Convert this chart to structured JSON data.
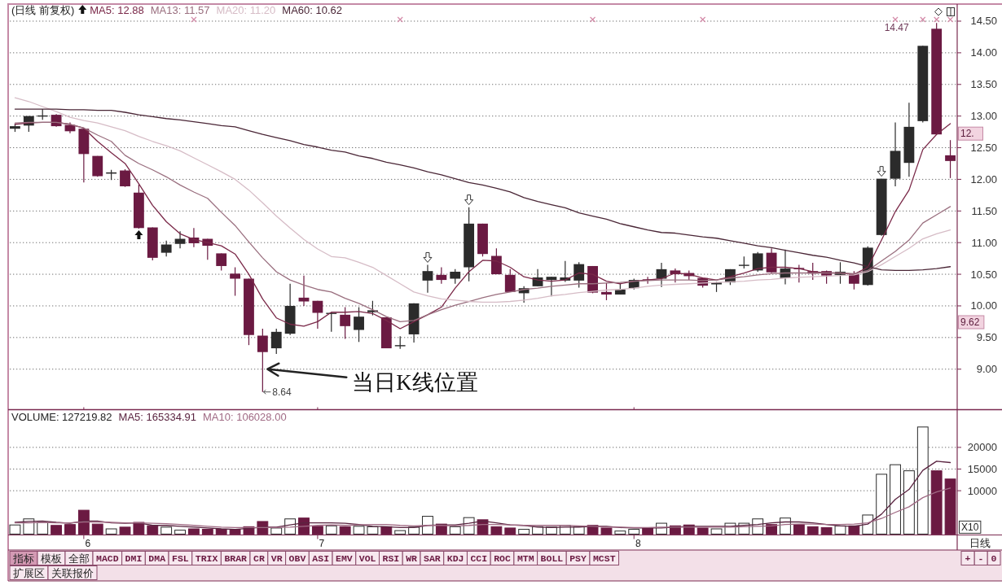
{
  "chart_data": [
    {
      "type": "candlestick",
      "title": "(日线 前复权)",
      "categories": [
        null,
        null,
        null,
        null,
        null,
        "6",
        null,
        null,
        null,
        null,
        null,
        null,
        null,
        null,
        null,
        null,
        null,
        null,
        null,
        null,
        null,
        null,
        "7",
        null,
        null,
        null,
        null,
        null,
        null,
        null,
        null,
        null,
        null,
        null,
        null,
        null,
        null,
        null,
        null,
        null,
        null,
        null,
        null,
        null,
        null,
        "8",
        null,
        null,
        null,
        null,
        null,
        null,
        null,
        null,
        null,
        null,
        null,
        null,
        null,
        null,
        null,
        null,
        null,
        null,
        null,
        null,
        null,
        null,
        null
      ],
      "ohlc": [
        [
          12.8,
          12.88,
          12.75,
          12.84
        ],
        [
          12.85,
          13.0,
          12.75,
          13.0
        ],
        [
          13.0,
          13.11,
          12.94,
          13.01
        ],
        [
          13.02,
          13.03,
          12.83,
          12.84
        ],
        [
          12.86,
          12.9,
          12.73,
          12.76
        ],
        [
          12.8,
          12.81,
          11.95,
          12.4
        ],
        [
          12.37,
          12.37,
          12.04,
          12.05
        ],
        [
          12.09,
          12.15,
          11.99,
          12.11
        ],
        [
          12.14,
          12.16,
          11.88,
          11.89
        ],
        [
          11.79,
          11.92,
          11.22,
          11.23
        ],
        [
          11.24,
          11.24,
          10.72,
          10.76
        ],
        [
          10.84,
          11.03,
          10.78,
          10.97
        ],
        [
          10.98,
          11.18,
          10.91,
          11.06
        ],
        [
          11.08,
          11.23,
          10.93,
          10.99
        ],
        [
          11.06,
          11.06,
          10.73,
          10.95
        ],
        [
          10.83,
          10.83,
          10.56,
          10.63
        ],
        [
          10.51,
          10.61,
          10.16,
          10.43
        ],
        [
          10.43,
          10.43,
          9.38,
          9.54
        ],
        [
          9.53,
          9.64,
          8.64,
          9.27
        ],
        [
          9.33,
          9.64,
          9.24,
          9.59
        ],
        [
          9.56,
          10.35,
          9.54,
          10.0
        ],
        [
          10.13,
          10.48,
          10.0,
          10.07
        ],
        [
          10.08,
          10.08,
          9.64,
          9.89
        ],
        [
          9.88,
          9.9,
          9.59,
          9.89
        ],
        [
          9.86,
          9.98,
          9.48,
          9.68
        ],
        [
          9.62,
          9.98,
          9.43,
          9.83
        ],
        [
          9.9,
          10.08,
          9.85,
          9.93
        ],
        [
          9.82,
          9.82,
          9.33,
          9.33
        ],
        [
          9.37,
          9.52,
          9.32,
          9.38
        ],
        [
          9.55,
          10.04,
          9.42,
          10.04
        ],
        [
          10.4,
          10.65,
          10.21,
          10.55
        ],
        [
          10.49,
          10.61,
          10.35,
          10.41
        ],
        [
          10.43,
          10.58,
          10.35,
          10.54
        ],
        [
          10.61,
          11.56,
          10.39,
          11.3
        ],
        [
          11.3,
          11.3,
          10.78,
          10.82
        ],
        [
          10.79,
          10.91,
          10.5,
          10.5
        ],
        [
          10.49,
          10.58,
          10.22,
          10.22
        ],
        [
          10.2,
          10.31,
          10.05,
          10.28
        ],
        [
          10.31,
          10.58,
          10.31,
          10.45
        ],
        [
          10.41,
          10.46,
          10.15,
          10.46
        ],
        [
          10.4,
          10.71,
          10.38,
          10.45
        ],
        [
          10.4,
          10.69,
          10.29,
          10.66
        ],
        [
          10.63,
          10.63,
          10.2,
          10.21
        ],
        [
          10.22,
          10.36,
          10.09,
          10.18
        ],
        [
          10.18,
          10.35,
          10.18,
          10.26
        ],
        [
          10.28,
          10.43,
          10.26,
          10.41
        ],
        [
          10.42,
          10.46,
          10.35,
          10.41
        ],
        [
          10.43,
          10.68,
          10.3,
          10.58
        ],
        [
          10.56,
          10.59,
          10.37,
          10.5
        ],
        [
          10.52,
          10.56,
          10.41,
          10.47
        ],
        [
          10.44,
          10.44,
          10.29,
          10.32
        ],
        [
          10.34,
          10.38,
          10.22,
          10.37
        ],
        [
          10.37,
          10.58,
          10.33,
          10.58
        ],
        [
          10.64,
          10.78,
          10.59,
          10.65
        ],
        [
          10.56,
          10.85,
          10.54,
          10.83
        ],
        [
          10.84,
          10.91,
          10.52,
          10.53
        ],
        [
          10.44,
          10.89,
          10.34,
          10.59
        ],
        [
          10.6,
          10.65,
          10.37,
          10.58
        ],
        [
          10.55,
          10.68,
          10.41,
          10.51
        ],
        [
          10.55,
          10.56,
          10.35,
          10.48
        ],
        [
          10.49,
          10.69,
          10.35,
          10.54
        ],
        [
          10.51,
          10.55,
          10.26,
          10.35
        ],
        [
          10.33,
          10.94,
          10.32,
          10.92
        ],
        [
          11.12,
          12.01,
          11.11,
          12.01
        ],
        [
          12.01,
          12.9,
          11.89,
          12.45
        ],
        [
          12.26,
          13.21,
          12.04,
          12.83
        ],
        [
          12.92,
          14.11,
          12.9,
          14.11
        ],
        [
          14.38,
          14.47,
          12.71,
          12.71
        ],
        [
          12.38,
          12.62,
          12.02,
          12.29
        ]
      ],
      "colors": [
        "#2b2b2b",
        "#2b2b2b",
        "#2b2b2b",
        "#6b1a42",
        "#6b1a42",
        "#6b1a42",
        "#6b1a42",
        "#2b2b2b",
        "#6b1a42",
        "#6b1a42",
        "#6b1a42",
        "#2b2b2b",
        "#2b2b2b",
        "#6b1a42",
        "#6b1a42",
        "#6b1a42",
        "#6b1a42",
        "#6b1a42",
        "#6b1a42",
        "#2b2b2b",
        "#2b2b2b",
        "#6b1a42",
        "#6b1a42",
        "#2b2b2b",
        "#6b1a42",
        "#2b2b2b",
        "#2b2b2b",
        "#6b1a42",
        "#2b2b2b",
        "#2b2b2b",
        "#2b2b2b",
        "#6b1a42",
        "#2b2b2b",
        "#2b2b2b",
        "#6b1a42",
        "#6b1a42",
        "#6b1a42",
        "#2b2b2b",
        "#2b2b2b",
        "#2b2b2b",
        "#2b2b2b",
        "#2b2b2b",
        "#6b1a42",
        "#6b1a42",
        "#2b2b2b",
        "#2b2b2b",
        "#6b1a42",
        "#2b2b2b",
        "#6b1a42",
        "#6b1a42",
        "#6b1a42",
        "#2b2b2b",
        "#2b2b2b",
        "#2b2b2b",
        "#2b2b2b",
        "#6b1a42",
        "#2b2b2b",
        "#6b1a42",
        "#6b1a42",
        "#6b1a42",
        "#2b2b2b",
        "#6b1a42",
        "#2b2b2b",
        "#2b2b2b",
        "#2b2b2b",
        "#2b2b2b",
        "#2b2b2b",
        "#6b1a42",
        "#6b1a42"
      ],
      "series": [
        {
          "name": "MA5: 12.88",
          "type": "line",
          "color": "#7a2848",
          "values": [
            12.87,
            12.89,
            12.9,
            12.9,
            12.87,
            12.81,
            12.6,
            12.42,
            12.25,
            11.93,
            11.59,
            11.33,
            11.14,
            11.05,
            11.0,
            10.95,
            10.82,
            10.5,
            10.11,
            9.81,
            9.71,
            9.68,
            9.75,
            9.9,
            9.9,
            9.91,
            9.88,
            9.77,
            9.64,
            9.75,
            9.86,
            9.98,
            10.28,
            10.54,
            10.72,
            10.71,
            10.61,
            10.46,
            10.41,
            10.39,
            10.41,
            10.52,
            10.5,
            10.39,
            10.35,
            10.39,
            10.41,
            10.43,
            10.52,
            10.5,
            10.44,
            10.41,
            10.46,
            10.52,
            10.59,
            10.61,
            10.61,
            10.59,
            10.54,
            10.52,
            10.52,
            10.5,
            10.61,
            11.04,
            11.49,
            11.83,
            12.47,
            12.71,
            12.88
          ]
        },
        {
          "name": "MA13: 11.57",
          "type": "line",
          "color": "#9a6f7f",
          "values": [
            12.89,
            12.9,
            12.9,
            12.9,
            12.87,
            12.81,
            12.7,
            12.6,
            12.38,
            12.25,
            12.15,
            12.04,
            11.91,
            11.8,
            11.7,
            11.48,
            11.27,
            11.01,
            10.76,
            10.54,
            10.41,
            10.33,
            10.26,
            10.22,
            10.12,
            10.04,
            9.94,
            9.83,
            9.75,
            9.77,
            9.86,
            9.94,
            10.01,
            10.07,
            10.13,
            10.18,
            10.22,
            10.26,
            10.28,
            10.31,
            10.33,
            10.35,
            10.35,
            10.36,
            10.37,
            10.39,
            10.4,
            10.41,
            10.41,
            10.41,
            10.4,
            10.41,
            10.44,
            10.46,
            10.49,
            10.51,
            10.52,
            10.52,
            10.52,
            10.52,
            10.52,
            10.51,
            10.56,
            10.71,
            10.86,
            11.04,
            11.31,
            11.44,
            11.57
          ]
        },
        {
          "name": "MA20: 11.20",
          "type": "line",
          "color": "#d6bcc6",
          "values": [
            13.29,
            13.23,
            13.15,
            13.07,
            12.98,
            12.93,
            12.89,
            12.83,
            12.77,
            12.68,
            12.6,
            12.53,
            12.45,
            12.34,
            12.23,
            12.12,
            12.0,
            11.83,
            11.63,
            11.42,
            11.23,
            11.05,
            10.9,
            10.78,
            10.76,
            10.69,
            10.61,
            10.48,
            10.35,
            10.22,
            10.16,
            10.11,
            10.09,
            10.07,
            10.06,
            10.06,
            10.07,
            10.09,
            10.12,
            10.16,
            10.18,
            10.21,
            10.23,
            10.25,
            10.26,
            10.28,
            10.31,
            10.33,
            10.34,
            10.35,
            10.36,
            10.37,
            10.38,
            10.39,
            10.41,
            10.42,
            10.44,
            10.45,
            10.46,
            10.47,
            10.48,
            10.49,
            10.54,
            10.65,
            10.78,
            10.91,
            11.06,
            11.14,
            11.2
          ]
        },
        {
          "name": "MA60: 10.62",
          "type": "line",
          "color": "#4a2636",
          "values": [
            13.11,
            13.11,
            13.11,
            13.11,
            13.1,
            13.1,
            13.09,
            13.09,
            13.06,
            13.02,
            12.99,
            12.96,
            12.94,
            12.91,
            12.88,
            12.85,
            12.83,
            12.77,
            12.71,
            12.66,
            12.61,
            12.55,
            12.51,
            12.46,
            12.43,
            12.37,
            12.33,
            12.27,
            12.23,
            12.18,
            12.12,
            12.07,
            12.01,
            11.95,
            11.91,
            11.86,
            11.8,
            11.71,
            11.65,
            11.6,
            11.55,
            11.47,
            11.42,
            11.37,
            11.3,
            11.25,
            11.2,
            11.16,
            11.15,
            11.12,
            11.09,
            11.07,
            11.03,
            10.99,
            10.95,
            10.92,
            10.88,
            10.84,
            10.8,
            10.77,
            10.72,
            10.68,
            10.62,
            10.57,
            10.56,
            10.56,
            10.57,
            10.59,
            10.62
          ]
        }
      ],
      "ylim": [
        8.36,
        14.77
      ],
      "yticks": [
        {
          "value": 9,
          "label": "9.00"
        },
        {
          "value": 9.5,
          "label": "9.50"
        },
        {
          "value": 10,
          "label": "10.00"
        },
        {
          "value": 10.5,
          "label": "10.50"
        },
        {
          "value": 11,
          "label": "11.00"
        },
        {
          "value": 11.5,
          "label": "11.50"
        },
        {
          "value": 12,
          "label": "12.00"
        },
        {
          "value": 12.5,
          "label": "12.50"
        },
        {
          "value": 13,
          "label": "13.00"
        },
        {
          "value": 13.5,
          "label": "13.50"
        },
        {
          "value": 14,
          "label": "14.00"
        },
        {
          "value": 14.5,
          "label": "14.50"
        }
      ],
      "grid": "y",
      "legend": "top left",
      "tick_labels": "y",
      "annotations": [
        "当日K线位置",
        "8.64",
        "14.47",
        "9.62",
        "12."
      ]
    },
    {
      "type": "bar",
      "categories": [
        null,
        null,
        null,
        null,
        null,
        "6",
        null,
        null,
        null,
        null,
        null,
        null,
        null,
        null,
        null,
        null,
        null,
        null,
        null,
        null,
        null,
        null,
        "7",
        null,
        null,
        null,
        null,
        null,
        null,
        null,
        null,
        null,
        null,
        null,
        null,
        null,
        null,
        null,
        null,
        null,
        null,
        null,
        null,
        null,
        null,
        "8",
        null,
        null,
        null,
        null,
        null,
        null,
        null,
        null,
        null,
        null,
        null,
        null,
        null,
        null,
        null,
        null,
        null,
        null,
        null,
        null,
        null,
        null,
        null
      ],
      "series": [
        {
          "name": "VOLUME: 127219.82",
          "type": "bar",
          "colors": [
            "#2b2b2b",
            "#2b2b2b",
            "#2b2b2b",
            "#6b1a42",
            "#6b1a42",
            "#6b1a42",
            "#6b1a42",
            "#2b2b2b",
            "#6b1a42",
            "#6b1a42",
            "#6b1a42",
            "#2b2b2b",
            "#2b2b2b",
            "#6b1a42",
            "#6b1a42",
            "#6b1a42",
            "#6b1a42",
            "#6b1a42",
            "#6b1a42",
            "#2b2b2b",
            "#2b2b2b",
            "#6b1a42",
            "#6b1a42",
            "#2b2b2b",
            "#6b1a42",
            "#2b2b2b",
            "#2b2b2b",
            "#6b1a42",
            "#2b2b2b",
            "#2b2b2b",
            "#2b2b2b",
            "#6b1a42",
            "#2b2b2b",
            "#2b2b2b",
            "#6b1a42",
            "#6b1a42",
            "#6b1a42",
            "#2b2b2b",
            "#2b2b2b",
            "#2b2b2b",
            "#2b2b2b",
            "#2b2b2b",
            "#6b1a42",
            "#6b1a42",
            "#2b2b2b",
            "#2b2b2b",
            "#6b1a42",
            "#2b2b2b",
            "#6b1a42",
            "#6b1a42",
            "#6b1a42",
            "#2b2b2b",
            "#2b2b2b",
            "#2b2b2b",
            "#2b2b2b",
            "#6b1a42",
            "#2b2b2b",
            "#6b1a42",
            "#6b1a42",
            "#6b1a42",
            "#2b2b2b",
            "#6b1a42",
            "#2b2b2b",
            "#2b2b2b",
            "#2b2b2b",
            "#2b2b2b",
            "#2b2b2b",
            "#6b1a42",
            "#6b1a42"
          ],
          "values": [
            2100,
            3500,
            2700,
            2000,
            2200,
            5500,
            2300,
            1200,
            1600,
            2700,
            1900,
            1600,
            900,
            1200,
            1100,
            1100,
            1100,
            1700,
            2900,
            1400,
            3500,
            3700,
            1800,
            1900,
            1700,
            1800,
            1700,
            1700,
            800,
            1600,
            4100,
            2300,
            1700,
            3800,
            3300,
            1700,
            1400,
            1100,
            1700,
            1600,
            2000,
            1700,
            2000,
            1400,
            700,
            1100,
            1400,
            2500,
            1900,
            2100,
            1400,
            1200,
            2500,
            2500,
            3500,
            2200,
            3700,
            2200,
            1700,
            1500,
            1900,
            1900,
            4400,
            13800,
            16000,
            14600,
            24700,
            14600,
            12700
          ]
        },
        {
          "name": "MA5: 165334.91",
          "type": "line",
          "color": "#5a2440",
          "values": [
            2700,
            2900,
            3000,
            2700,
            2500,
            3000,
            3000,
            2600,
            2500,
            2600,
            2000,
            2000,
            1800,
            1600,
            1400,
            1200,
            1100,
            1300,
            1600,
            1600,
            2100,
            2600,
            2600,
            2600,
            2500,
            2200,
            1800,
            1700,
            1500,
            1500,
            2000,
            2100,
            2100,
            2500,
            3000,
            2600,
            2100,
            2000,
            1600,
            1500,
            1600,
            1600,
            1800,
            1800,
            1500,
            1400,
            1400,
            1400,
            1600,
            1800,
            1800,
            1800,
            1800,
            2000,
            2200,
            2600,
            2800,
            2800,
            2600,
            2200,
            1900,
            1800,
            2300,
            4600,
            8000,
            10300,
            14700,
            16800,
            16500
          ]
        },
        {
          "name": "MA10: 106028.00",
          "type": "line",
          "color": "#a06a84",
          "values": [
            2600,
            2600,
            2700,
            2600,
            2600,
            2800,
            2800,
            2700,
            2600,
            2600,
            2500,
            2400,
            2200,
            2000,
            1800,
            1600,
            1500,
            1500,
            1500,
            1500,
            1600,
            1800,
            2000,
            2100,
            2000,
            2100,
            2200,
            2200,
            2000,
            1900,
            2000,
            2000,
            1900,
            2000,
            2200,
            2200,
            2100,
            2000,
            2000,
            2000,
            2000,
            1900,
            1800,
            1600,
            1600,
            1500,
            1500,
            1600,
            1600,
            1600,
            1600,
            1600,
            1600,
            1700,
            1800,
            1900,
            2200,
            2300,
            2300,
            2200,
            2200,
            2300,
            2600,
            3600,
            5000,
            6300,
            8400,
            9700,
            10600
          ]
        }
      ],
      "ylim": [
        0,
        28700
      ],
      "yticks": [
        10000,
        15000,
        20000
      ],
      "ylabel": "X10",
      "xlabel": "日线",
      "grid": "y",
      "legend": "top left",
      "annotations": [
        "指标",
        "模板",
        "全部",
        "MACD",
        "DMI",
        "DMA",
        "FSL",
        "TRIX",
        "BRAR",
        "CR",
        "VR",
        "OBV",
        "ASI",
        "EMV",
        "VOL",
        "RSI",
        "WR",
        "SAR",
        "KDJ",
        "CCI",
        "ROC",
        "MTM",
        "BOLL",
        "PSY",
        "MCST",
        "+",
        "-",
        "0",
        "扩展区",
        "关联报价"
      ]
    }
  ]
}
